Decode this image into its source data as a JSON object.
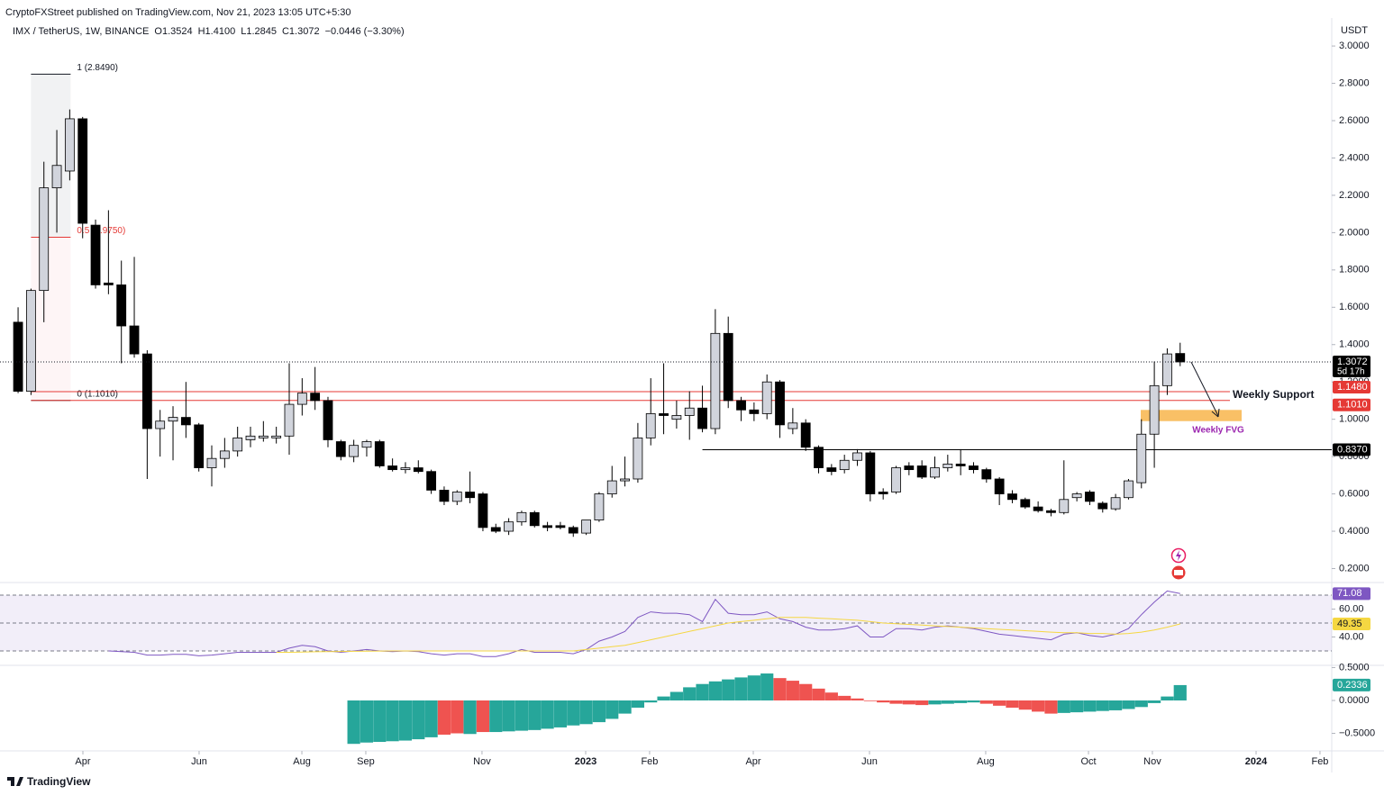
{
  "header": {
    "publisher": "CryptoFXStreet published on TradingView.com, Nov 21, 2023 13:05 UTC+5:30",
    "symbol": "IMX / TetherUS, 1W, BINANCE",
    "ohlc": [
      "O1.3524",
      "H1.4100",
      "L1.2845",
      "C1.3072",
      "−0.0446 (−3.30%)"
    ],
    "logo": "TradingView"
  },
  "chart_data": [
    {
      "type": "candlestick",
      "currency": "USDT",
      "up_color": "#d1d4dc",
      "down_color": "#000000",
      "open": [
        1.52,
        1.15,
        1.69,
        2.24,
        2.33,
        2.61,
        2.04,
        1.73,
        1.72,
        1.5,
        1.35,
        0.95,
        0.99,
        1.01,
        0.97,
        0.74,
        0.79,
        0.83,
        0.89,
        0.9,
        0.9,
        0.91,
        1.08,
        1.14,
        1.1,
        0.88,
        0.8,
        0.85,
        0.88,
        0.75,
        0.73,
        0.74,
        0.72,
        0.62,
        0.56,
        0.61,
        0.6,
        0.42,
        0.4,
        0.45,
        0.5,
        0.43,
        0.43,
        0.42,
        0.39,
        0.46,
        0.6,
        0.67,
        0.68,
        0.9,
        1.03,
        1.0,
        1.02,
        1.06,
        0.95,
        1.46,
        1.1,
        1.05,
        1.03,
        1.2,
        0.95,
        0.98,
        0.85,
        0.74,
        0.73,
        0.78,
        0.82,
        0.61,
        0.61,
        0.75,
        0.75,
        0.69,
        0.74,
        0.76,
        0.75,
        0.73,
        0.68,
        0.6,
        0.57,
        0.53,
        0.51,
        0.5,
        0.58,
        0.61,
        0.55,
        0.52,
        0.58,
        0.66,
        0.92,
        1.18,
        1.3524
      ],
      "high": [
        1.6,
        1.7,
        2.38,
        2.55,
        2.66,
        2.62,
        2.07,
        2.12,
        1.85,
        1.87,
        1.37,
        1.05,
        1.07,
        1.2,
        0.98,
        0.86,
        0.9,
        0.96,
        0.96,
        0.99,
        0.96,
        1.3,
        1.22,
        1.28,
        1.12,
        0.89,
        0.89,
        0.89,
        0.89,
        0.79,
        0.77,
        0.78,
        0.73,
        0.64,
        0.62,
        0.72,
        0.61,
        0.44,
        0.47,
        0.51,
        0.51,
        0.45,
        0.45,
        0.43,
        0.46,
        0.61,
        0.75,
        0.8,
        0.98,
        1.22,
        1.3,
        1.1,
        1.15,
        1.18,
        1.59,
        1.55,
        1.12,
        1.09,
        1.24,
        1.21,
        1.06,
        1.0,
        0.86,
        0.76,
        0.81,
        0.84,
        0.83,
        0.63,
        0.75,
        0.77,
        0.78,
        0.8,
        0.81,
        0.84,
        0.77,
        0.74,
        0.69,
        0.62,
        0.58,
        0.56,
        0.52,
        0.78,
        0.61,
        0.62,
        0.56,
        0.6,
        0.68,
        1.0,
        1.31,
        1.38,
        1.41
      ],
      "low": [
        1.14,
        1.13,
        1.52,
        2.0,
        2.28,
        1.97,
        1.7,
        1.67,
        1.3,
        1.33,
        0.68,
        0.8,
        0.78,
        0.9,
        0.72,
        0.64,
        0.74,
        0.8,
        0.85,
        0.88,
        0.87,
        0.81,
        1.02,
        1.05,
        0.85,
        0.78,
        0.77,
        0.8,
        0.74,
        0.72,
        0.71,
        0.71,
        0.6,
        0.54,
        0.54,
        0.55,
        0.4,
        0.39,
        0.38,
        0.43,
        0.42,
        0.4,
        0.41,
        0.37,
        0.38,
        0.45,
        0.58,
        0.64,
        0.66,
        0.86,
        0.92,
        0.95,
        0.89,
        0.93,
        0.92,
        1.06,
        0.99,
        0.99,
        1.0,
        0.9,
        0.92,
        0.83,
        0.71,
        0.7,
        0.71,
        0.75,
        0.56,
        0.57,
        0.6,
        0.7,
        0.68,
        0.68,
        0.72,
        0.7,
        0.71,
        0.66,
        0.54,
        0.55,
        0.52,
        0.5,
        0.48,
        0.49,
        0.56,
        0.54,
        0.5,
        0.51,
        0.57,
        0.63,
        0.74,
        1.13,
        1.2845
      ],
      "close": [
        1.15,
        1.69,
        2.24,
        2.36,
        2.61,
        2.05,
        1.72,
        1.72,
        1.5,
        1.35,
        0.95,
        0.99,
        1.01,
        0.97,
        0.74,
        0.79,
        0.83,
        0.9,
        0.91,
        0.91,
        0.91,
        1.08,
        1.14,
        1.1,
        0.89,
        0.8,
        0.86,
        0.88,
        0.75,
        0.73,
        0.74,
        0.72,
        0.62,
        0.56,
        0.61,
        0.58,
        0.42,
        0.4,
        0.45,
        0.5,
        0.43,
        0.42,
        0.42,
        0.39,
        0.46,
        0.6,
        0.67,
        0.68,
        0.9,
        1.03,
        1.02,
        1.02,
        1.06,
        0.95,
        1.46,
        1.1,
        1.05,
        1.03,
        1.2,
        0.97,
        0.98,
        0.85,
        0.74,
        0.72,
        0.78,
        0.82,
        0.6,
        0.6,
        0.74,
        0.73,
        0.69,
        0.74,
        0.76,
        0.75,
        0.73,
        0.68,
        0.6,
        0.57,
        0.53,
        0.51,
        0.5,
        0.57,
        0.6,
        0.56,
        0.52,
        0.58,
        0.67,
        0.92,
        1.18,
        1.35,
        1.3072
      ],
      "countdown": "5d 17h",
      "xlim": [
        -1.4,
        101.74
      ],
      "xticks": [
        {
          "value": 5.02,
          "label": "Apr"
        },
        {
          "value": 14.02,
          "label": "Jun"
        },
        {
          "value": 21.98,
          "label": "Aug"
        },
        {
          "value": 26.93,
          "label": "Sep"
        },
        {
          "value": 35.93,
          "label": "Nov"
        },
        {
          "value": 43.96,
          "label": "2023"
        },
        {
          "value": 48.91,
          "label": "Feb"
        },
        {
          "value": 56.94,
          "label": "Apr"
        },
        {
          "value": 65.94,
          "label": "Jun"
        },
        {
          "value": 74.94,
          "label": "Aug"
        },
        {
          "value": 82.9,
          "label": "Oct"
        },
        {
          "value": 87.85,
          "label": "Nov"
        },
        {
          "value": 95.88,
          "label": "2024"
        },
        {
          "value": 100.83,
          "label": "Feb"
        }
      ],
      "ylim": [
        0.13,
        3.15
      ],
      "yticks": [
        {
          "value": 3.0,
          "label": "3.0000"
        },
        {
          "value": 2.8,
          "label": "2.8000"
        },
        {
          "value": 2.6,
          "label": "2.6000"
        },
        {
          "value": 2.4,
          "label": "2.4000"
        },
        {
          "value": 2.2,
          "label": "2.2000"
        },
        {
          "value": 2.0,
          "label": "2.0000"
        },
        {
          "value": 1.8,
          "label": "1.8000"
        },
        {
          "value": 1.6,
          "label": "1.6000"
        },
        {
          "value": 1.4,
          "label": "1.4000"
        },
        {
          "value": 1.2,
          "label": "1.2000"
        },
        {
          "value": 1.0,
          "label": "1.0000"
        },
        {
          "value": 0.8,
          "label": "0.8000"
        },
        {
          "value": 0.6,
          "label": "0.6000"
        },
        {
          "value": 0.4,
          "label": "0.4000"
        },
        {
          "value": 0.2,
          "label": "0.2000"
        }
      ],
      "levels": [
        {
          "value": 1.148,
          "label": "1.1480",
          "color": "#e53935"
        },
        {
          "value": 1.101,
          "label": "1.1010",
          "color": "#e53935"
        },
        {
          "value": 0.837,
          "label": "0.8370",
          "color": "#000000"
        }
      ],
      "fib": [
        {
          "value": 2.849,
          "label": "1 (2.8490)",
          "color": "#131722"
        },
        {
          "value": 1.975,
          "label": "0.5 (1.9750)",
          "color": "#e53935"
        },
        {
          "value": 1.101,
          "label": "0 (1.1010)",
          "color": "#131722"
        }
      ],
      "support_label": "Weekly Support",
      "fvg": {
        "label": "Weekly FVG",
        "range": [
          0.99,
          1.05
        ],
        "color": "#f9c066",
        "label_color": "#9c27b0"
      }
    },
    {
      "type": "line",
      "ylim": [
        20.3,
        78.4
      ],
      "yticks": [
        {
          "value": 60,
          "label": "60.00"
        },
        {
          "value": 40,
          "label": "40.00"
        }
      ],
      "bands": [
        70,
        50,
        30
      ],
      "series": [
        {
          "color": "#7e57c2",
          "text_color": "#ffffff",
          "values": [
            null,
            null,
            null,
            null,
            null,
            null,
            null,
            30,
            29.5,
            29,
            27,
            27,
            27.5,
            27.5,
            26.5,
            27,
            28,
            29,
            29,
            29,
            29,
            32,
            34,
            33,
            30,
            29,
            30,
            31,
            30,
            29.5,
            30,
            29.5,
            28,
            27,
            28,
            28,
            26,
            26,
            28,
            31,
            29,
            29,
            29,
            28,
            31,
            37,
            40,
            44,
            54,
            58,
            57,
            57,
            56,
            51,
            67,
            57,
            56,
            56,
            58,
            53,
            51,
            47,
            45,
            45,
            46,
            48,
            40,
            40,
            46,
            46,
            45,
            47,
            48,
            47,
            46,
            44,
            42,
            41,
            40,
            39,
            38,
            42,
            43,
            41,
            40,
            42,
            46,
            56,
            65,
            73,
            71.08
          ]
        },
        {
          "color": "#f5d742",
          "text_color": "#131722",
          "values": [
            null,
            null,
            null,
            null,
            null,
            null,
            null,
            null,
            null,
            null,
            null,
            null,
            null,
            null,
            null,
            null,
            null,
            null,
            null,
            null,
            29,
            29,
            29.2,
            29.4,
            29.5,
            29.6,
            29.7,
            29.8,
            29.9,
            30,
            30,
            30,
            30,
            30,
            30,
            30,
            30,
            30,
            30,
            30,
            30,
            30,
            30,
            30,
            31,
            32,
            33,
            34,
            36,
            38,
            40,
            42,
            44,
            46,
            48,
            50,
            51,
            52,
            53,
            54,
            54,
            54,
            53.5,
            53,
            52.5,
            52,
            51,
            50,
            49.5,
            49,
            48.5,
            48,
            47.5,
            47,
            46.5,
            46,
            45.5,
            45,
            44.5,
            44,
            43.5,
            43,
            43,
            42.5,
            42.5,
            42,
            42.5,
            43.5,
            45,
            47,
            49.35
          ]
        }
      ]
    },
    {
      "type": "bar",
      "ylim": [
        -0.753,
        0.52
      ],
      "yticks": [
        {
          "value": 0.5,
          "label": "0.5000"
        },
        {
          "value": 0,
          "label": "0.0000"
        },
        {
          "value": -0.5,
          "label": "−0.5000"
        }
      ],
      "values": [
        null,
        null,
        null,
        null,
        null,
        null,
        null,
        null,
        null,
        null,
        null,
        null,
        null,
        null,
        null,
        null,
        null,
        null,
        null,
        null,
        null,
        null,
        null,
        null,
        null,
        null,
        -0.66,
        -0.64,
        -0.63,
        -0.62,
        -0.61,
        -0.59,
        -0.56,
        -0.52,
        -0.5,
        -0.51,
        -0.48,
        -0.48,
        -0.47,
        -0.46,
        -0.45,
        -0.43,
        -0.41,
        -0.38,
        -0.36,
        -0.33,
        -0.28,
        -0.2,
        -0.11,
        -0.03,
        0.06,
        0.13,
        0.2,
        0.25,
        0.29,
        0.32,
        0.35,
        0.38,
        0.41,
        0.34,
        0.3,
        0.25,
        0.18,
        0.12,
        0.07,
        0.03,
        -0.01,
        -0.03,
        -0.05,
        -0.06,
        -0.07,
        -0.06,
        -0.05,
        -0.04,
        -0.03,
        -0.05,
        -0.08,
        -0.11,
        -0.14,
        -0.17,
        -0.2,
        -0.19,
        -0.18,
        -0.17,
        -0.16,
        -0.15,
        -0.13,
        -0.1,
        -0.04,
        0.06,
        0.2336
      ],
      "colors": [
        null,
        null,
        null,
        null,
        null,
        null,
        null,
        null,
        null,
        null,
        null,
        null,
        null,
        null,
        null,
        null,
        null,
        null,
        null,
        null,
        null,
        null,
        null,
        null,
        null,
        null,
        "#26a69a",
        "#26a69a",
        "#26a69a",
        "#26a69a",
        "#26a69a",
        "#26a69a",
        "#26a69a",
        "#ef5350",
        "#ef5350",
        "#26a69a",
        "#ef5350",
        "#26a69a",
        "#26a69a",
        "#26a69a",
        "#26a69a",
        "#26a69a",
        "#26a69a",
        "#26a69a",
        "#26a69a",
        "#26a69a",
        "#26a69a",
        "#26a69a",
        "#26a69a",
        "#26a69a",
        "#26a69a",
        "#26a69a",
        "#26a69a",
        "#26a69a",
        "#26a69a",
        "#26a69a",
        "#26a69a",
        "#26a69a",
        "#26a69a",
        "#ef5350",
        "#ef5350",
        "#ef5350",
        "#ef5350",
        "#ef5350",
        "#ef5350",
        "#ef5350",
        "#ef5350",
        "#ef5350",
        "#ef5350",
        "#ef5350",
        "#ef5350",
        "#26a69a",
        "#26a69a",
        "#26a69a",
        "#26a69a",
        "#ef5350",
        "#ef5350",
        "#ef5350",
        "#ef5350",
        "#ef5350",
        "#ef5350",
        "#26a69a",
        "#26a69a",
        "#26a69a",
        "#26a69a",
        "#26a69a",
        "#26a69a",
        "#26a69a",
        "#26a69a",
        "#26a69a",
        "#26a69a"
      ]
    }
  ]
}
